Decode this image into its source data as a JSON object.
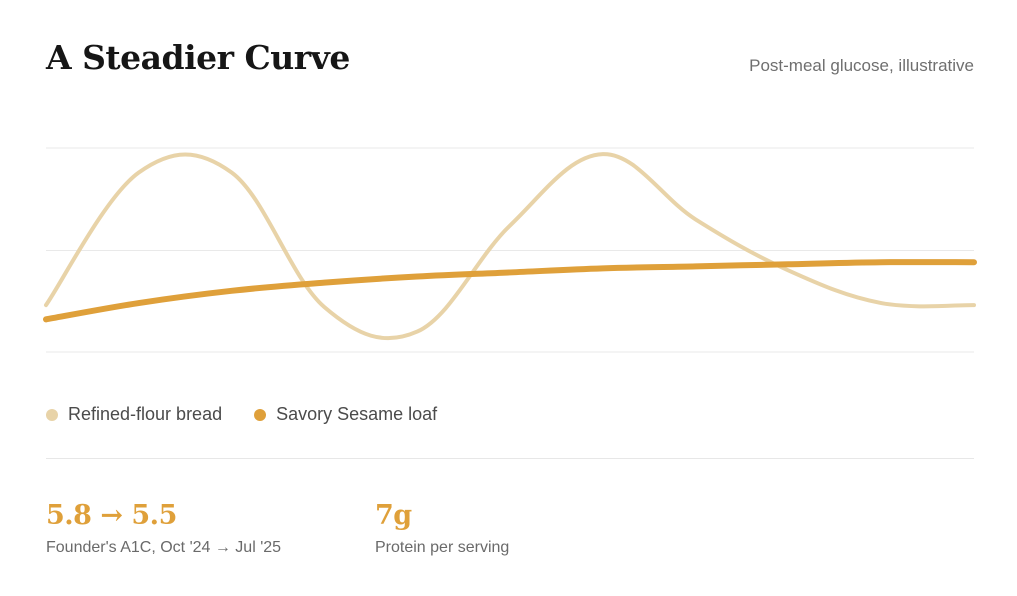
{
  "header": {
    "title": "A Steadier Curve",
    "subtitle": "Post-meal glucose, illustrative"
  },
  "chart_data": {
    "type": "line",
    "title": "A Steadier Curve",
    "subtitle": "Post-meal glucose, illustrative",
    "xlabel": "",
    "ylabel": "",
    "grid": true,
    "legend_placement": "bottom-left",
    "x": [
      0,
      0.1,
      0.2,
      0.3,
      0.4,
      0.5,
      0.6,
      0.7,
      0.8,
      0.9,
      1.0
    ],
    "ylim": [
      0,
      1
    ],
    "series": [
      {
        "name": "Refined-flour bread",
        "color": "#e8d3a8",
        "values": [
          0.23,
          0.88,
          0.88,
          0.22,
          0.1,
          0.62,
          0.97,
          0.65,
          0.4,
          0.24,
          0.23
        ]
      },
      {
        "name": "Savory Sesame loaf",
        "color": "#dfa03a",
        "values": [
          0.16,
          0.24,
          0.3,
          0.34,
          0.37,
          0.39,
          0.41,
          0.42,
          0.43,
          0.44,
          0.44
        ]
      }
    ]
  },
  "legend": {
    "items": [
      {
        "label": "Refined-flour bread",
        "color": "#e8d3a8"
      },
      {
        "label": "Savory Sesame loaf",
        "color": "#dfa03a"
      }
    ]
  },
  "stats": [
    {
      "value": "5.8 → 5.5",
      "label": "Founder's A1C, Oct '24 → Jul '25"
    },
    {
      "value": "7g",
      "label": "Protein per serving"
    }
  ],
  "colors": {
    "accent": "#dfa03a",
    "muted_series": "#e8d3a8",
    "gridline": "#e9e9e9"
  }
}
